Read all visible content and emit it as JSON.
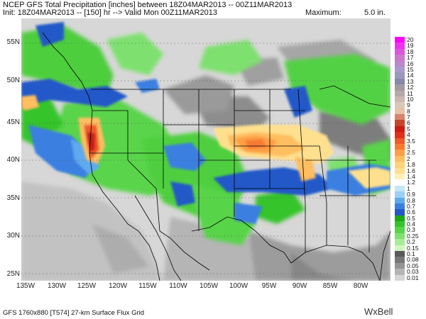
{
  "header": {
    "line1": "NCEP GFS Total Precipitation [inches] between 18Z04MAR2013 -- 00Z11MAR2013",
    "line2": "Init: 18Z04MAR2013 -- [150] hr --> Valid Mon 00Z11MAR2013",
    "max_label": "Maximum:",
    "max_value": "5.0 in."
  },
  "lat_labels": [
    "55N",
    "50N",
    "45N",
    "40N",
    "35N",
    "30N",
    "25N"
  ],
  "lon_labels": [
    "135W",
    "130W",
    "125W",
    "120W",
    "115W",
    "110W",
    "105W",
    "100W",
    "95W",
    "90W",
    "85W",
    "80W"
  ],
  "legend": {
    "levels": [
      "20",
      "19",
      "18",
      "17",
      "16",
      "15",
      "14",
      "13",
      "12",
      "11",
      "10",
      "9",
      "8",
      "7",
      "6",
      "5",
      "4",
      "3.5",
      "3",
      "2.5",
      "2",
      "1.8",
      "1.6",
      "1.4",
      "1.2",
      "1",
      "0.9",
      "0.8",
      "0.7",
      "0.6",
      "0.5",
      "0.4",
      "0.3",
      "0.25",
      "0.2",
      "0.15",
      "0.1",
      "0.08",
      "0.05",
      "0.03",
      "0.01"
    ],
    "colors": [
      "#ff00ff",
      "#ee33ee",
      "#dd55dd",
      "#cc77cc",
      "#bb88cc",
      "#aa99cc",
      "#9999bb",
      "#8888aa",
      "#a399a0",
      "#b4a8a8",
      "#c8b8b0",
      "#d9c8b8",
      "#e6c2a6",
      "#d8846a",
      "#c8442c",
      "#cc1a14",
      "#e0301c",
      "#ee5a2a",
      "#f77a30",
      "#ff9f45",
      "#ffbe60",
      "#ffd278",
      "#ffe08e",
      "#fff0b4",
      "#ffffff",
      "#c6e6f6",
      "#98d0f5",
      "#5ea9ee",
      "#3a7fe0",
      "#2458c8",
      "#1aa818",
      "#34c42c",
      "#58d44a",
      "#7ee06e",
      "#a8ec98",
      "#d0f6c0",
      "#595959",
      "#777777",
      "#959595",
      "#b5b5b5",
      "#d5d5d5"
    ]
  },
  "footer": "GFS 1760x880 [T574] 27-km Surface Flux Grid",
  "brand": "WxBell"
}
